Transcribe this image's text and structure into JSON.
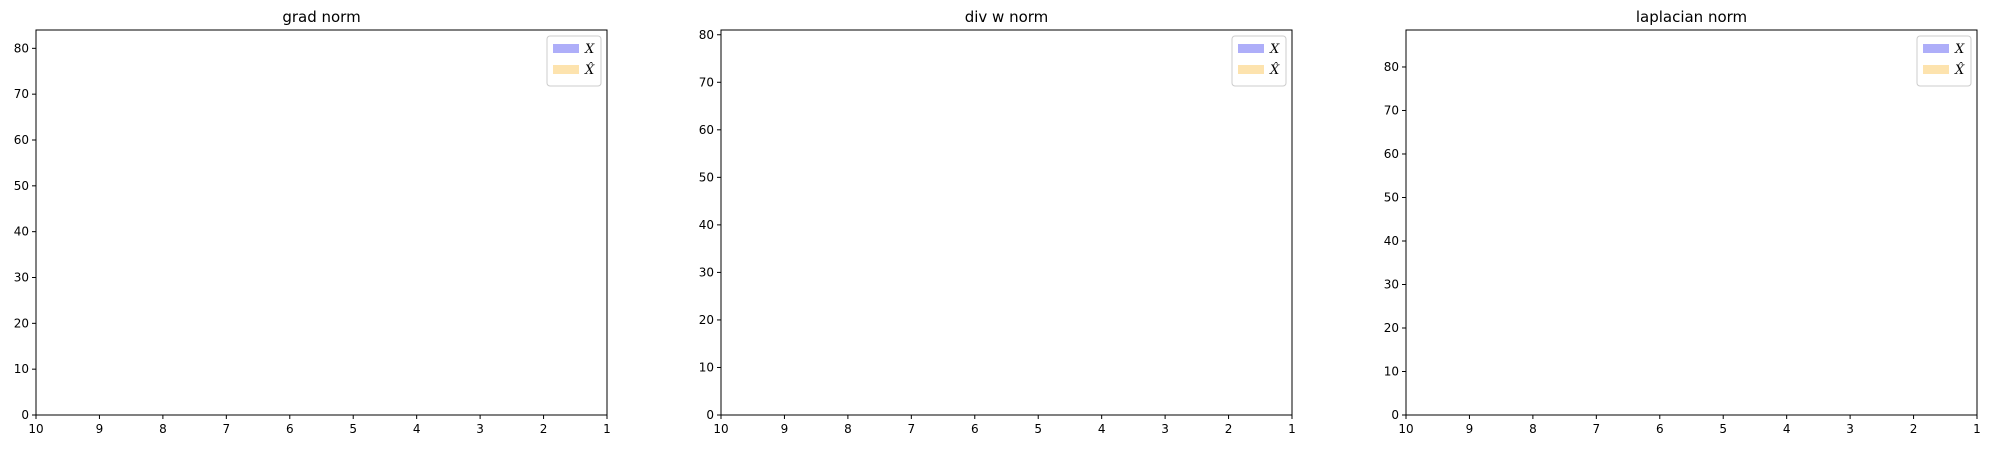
{
  "chart_data": [
    {
      "type": "bar",
      "title": "grad norm",
      "xlabel": "",
      "ylabel": "",
      "x_ticks": [
        "10",
        "9",
        "8",
        "7",
        "6",
        "5",
        "4",
        "3",
        "2",
        "1"
      ],
      "xlim": [
        10,
        1
      ],
      "ylim": [
        0,
        84
      ],
      "y_ticks": [
        "0",
        "10",
        "20",
        "30",
        "40",
        "50",
        "60",
        "70",
        "80"
      ],
      "grid": false,
      "legend_position": "top-right",
      "series": [
        {
          "name": "X",
          "color": "#aeaef9",
          "values": []
        },
        {
          "name": "X̂",
          "color": "#fde3ae",
          "values": []
        }
      ]
    },
    {
      "type": "bar",
      "title": "div w norm",
      "xlabel": "",
      "ylabel": "",
      "x_ticks": [
        "10",
        "9",
        "8",
        "7",
        "6",
        "5",
        "4",
        "3",
        "2",
        "1"
      ],
      "xlim": [
        10,
        1
      ],
      "ylim": [
        0,
        81
      ],
      "y_ticks": [
        "0",
        "10",
        "20",
        "30",
        "40",
        "50",
        "60",
        "70",
        "80"
      ],
      "grid": false,
      "legend_position": "top-right",
      "series": [
        {
          "name": "X",
          "color": "#aeaef9",
          "values": []
        },
        {
          "name": "X̂",
          "color": "#fde3ae",
          "values": []
        }
      ]
    },
    {
      "type": "bar",
      "title": "laplacian norm",
      "xlabel": "",
      "ylabel": "",
      "x_ticks": [
        "10",
        "9",
        "8",
        "7",
        "6",
        "5",
        "4",
        "3",
        "2",
        "1"
      ],
      "xlim": [
        10,
        1
      ],
      "ylim": [
        0,
        88.5
      ],
      "y_ticks": [
        "0",
        "10",
        "20",
        "30",
        "40",
        "50",
        "60",
        "70",
        "80"
      ],
      "grid": false,
      "legend_position": "top-right",
      "series": [
        {
          "name": "X",
          "color": "#aeaef9",
          "values": []
        },
        {
          "name": "X̂",
          "color": "#fde3ae",
          "values": []
        }
      ]
    }
  ]
}
